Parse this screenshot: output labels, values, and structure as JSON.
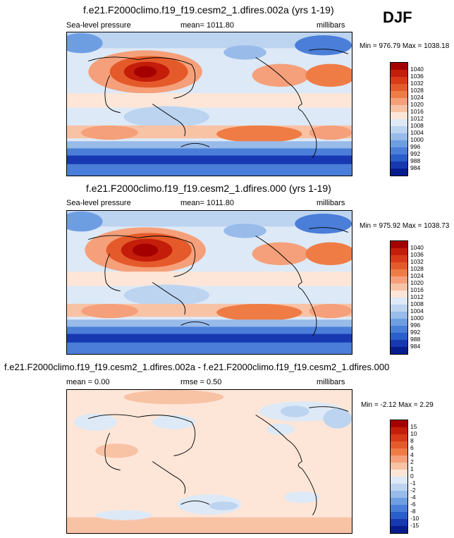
{
  "season": "DJF",
  "panels": [
    {
      "title": "f.e21.F2000climo.f19_f19.cesm2_1.dfires.002a (yrs 1-19)",
      "left_label": "Sea-level pressure",
      "center_label": "mean= 1011.80",
      "units": "millibars",
      "minmax": "Min = 976.79 Max = 1038.18",
      "colorbar": {
        "ticks": [
          "1040",
          "1036",
          "1032",
          "1028",
          "1024",
          "1020",
          "1016",
          "1012",
          "1008",
          "1004",
          "1000",
          "996",
          "992",
          "988",
          "984"
        ],
        "colors": [
          "#a50000",
          "#c41d0a",
          "#d93a17",
          "#e55a2a",
          "#ef7c45",
          "#f5a07a",
          "#f8c2a5",
          "#fde6d8",
          "#dde9f6",
          "#bcd4f0",
          "#98bbea",
          "#6e9ee2",
          "#4a7ed8",
          "#2a5ecb",
          "#1838b2",
          "#071d8e"
        ]
      }
    },
    {
      "title": "f.e21.F2000climo.f19_f19.cesm2_1.dfires.000 (yrs 1-19)",
      "left_label": "Sea-level pressure",
      "center_label": "mean= 1011.80",
      "units": "millibars",
      "minmax": "Min = 975.92 Max = 1038.73",
      "colorbar": {
        "ticks": [
          "1040",
          "1036",
          "1032",
          "1028",
          "1024",
          "1020",
          "1016",
          "1012",
          "1008",
          "1004",
          "1000",
          "996",
          "992",
          "988",
          "984"
        ],
        "colors": [
          "#a50000",
          "#c41d0a",
          "#d93a17",
          "#e55a2a",
          "#ef7c45",
          "#f5a07a",
          "#f8c2a5",
          "#fde6d8",
          "#dde9f6",
          "#bcd4f0",
          "#98bbea",
          "#6e9ee2",
          "#4a7ed8",
          "#2a5ecb",
          "#1838b2",
          "#071d8e"
        ]
      }
    },
    {
      "title": "f.e21.F2000climo.f19_f19.cesm2_1.dfires.002a - f.e21.F2000climo.f19_f19.cesm2_1.dfires.000",
      "left_label": "mean =   0.00",
      "center_label": "rmse =   0.50",
      "units": "millibars",
      "minmax": "Min =  -2.12 Max =   2.29",
      "colorbar": {
        "ticks": [
          "15",
          "10",
          "8",
          "6",
          "4",
          "2",
          "1",
          "0",
          "-1",
          "-2",
          "-4",
          "-6",
          "-8",
          "-10",
          "-15"
        ],
        "colors": [
          "#a50000",
          "#c41d0a",
          "#d93a17",
          "#e55a2a",
          "#ef7c45",
          "#f5a07a",
          "#f8c2a5",
          "#fde6d8",
          "#dde9f6",
          "#bcd4f0",
          "#98bbea",
          "#6e9ee2",
          "#4a7ed8",
          "#2a5ecb",
          "#1838b2",
          "#071d8e"
        ]
      }
    }
  ]
}
